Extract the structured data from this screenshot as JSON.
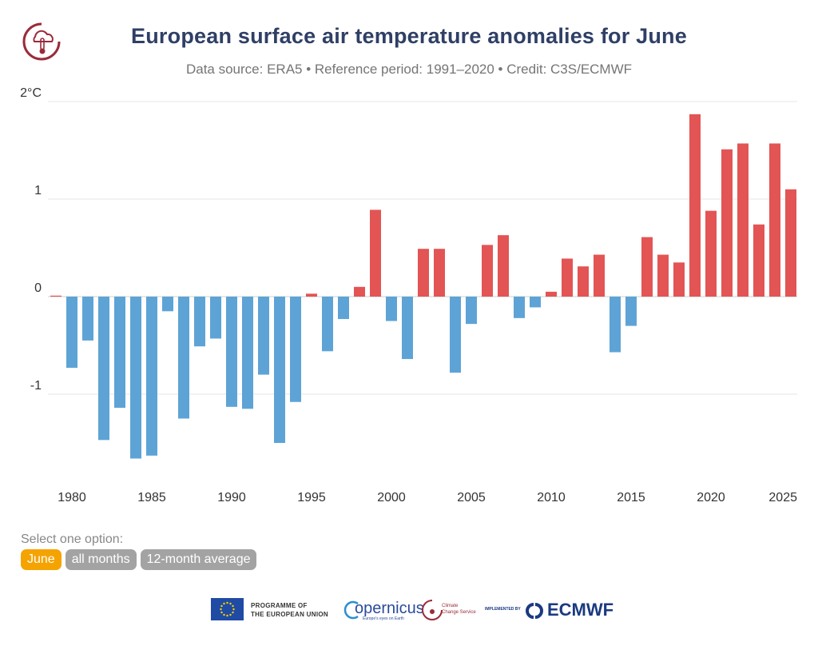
{
  "header": {
    "title": "European surface air temperature anomalies for June",
    "subtitle": "Data source: ERA5 • Reference period: 1991–2020 • Credit: C3S/ECMWF"
  },
  "controls": {
    "label": "Select one option:",
    "options": [
      "June",
      "all months",
      "12-month average"
    ],
    "selected": "June"
  },
  "footer": {
    "eu_text_1": "PROGRAMME OF",
    "eu_text_2": "THE EUROPEAN UNION",
    "copernicus": "opernicus",
    "copernicus_sub": "Europe's eyes on Earth",
    "c3s_1": "Climate",
    "c3s_2": "Change Service",
    "implemented": "IMPLEMENTED BY",
    "ecmwf": "ECMWF"
  },
  "colors": {
    "positive": "#e35454",
    "negative": "#5ea3d6",
    "title": "#2f3f66",
    "accent": "#f5a300"
  },
  "chart_data": {
    "type": "bar",
    "title": "European surface air temperature anomalies for June",
    "x": [
      1979,
      1980,
      1981,
      1982,
      1983,
      1984,
      1985,
      1986,
      1987,
      1988,
      1989,
      1990,
      1991,
      1992,
      1993,
      1994,
      1995,
      1996,
      1997,
      1998,
      1999,
      2000,
      2001,
      2002,
      2003,
      2004,
      2005,
      2006,
      2007,
      2008,
      2009,
      2010,
      2011,
      2012,
      2013,
      2014,
      2015,
      2016,
      2017,
      2018,
      2019,
      2020,
      2021,
      2022,
      2023,
      2024,
      2025
    ],
    "values": [
      0.01,
      -0.73,
      -0.45,
      -1.47,
      -1.14,
      -1.66,
      -1.63,
      -0.15,
      -1.25,
      -0.51,
      -0.43,
      -1.13,
      -1.15,
      -0.8,
      -1.5,
      -1.08,
      0.03,
      -0.56,
      -0.23,
      0.1,
      0.89,
      -0.25,
      -0.64,
      0.49,
      0.49,
      -0.78,
      -0.28,
      0.53,
      0.63,
      -0.22,
      -0.11,
      0.05,
      0.39,
      0.31,
      0.43,
      -0.57,
      -0.3,
      0.61,
      0.43,
      0.35,
      1.87,
      0.88,
      1.51,
      1.57,
      0.74,
      1.57,
      1.1
    ],
    "ylim": [
      -1.85,
      2.0
    ],
    "y_ticks": [
      {
        "value": 2,
        "label": "2°C"
      },
      {
        "value": 1,
        "label": "1"
      },
      {
        "value": 0,
        "label": "0"
      },
      {
        "value": -1,
        "label": "-1"
      }
    ],
    "x_ticks": [
      1980,
      1985,
      1990,
      1995,
      2000,
      2005,
      2010,
      2015,
      2020,
      2025
    ],
    "xlabel": "",
    "ylabel": ""
  }
}
